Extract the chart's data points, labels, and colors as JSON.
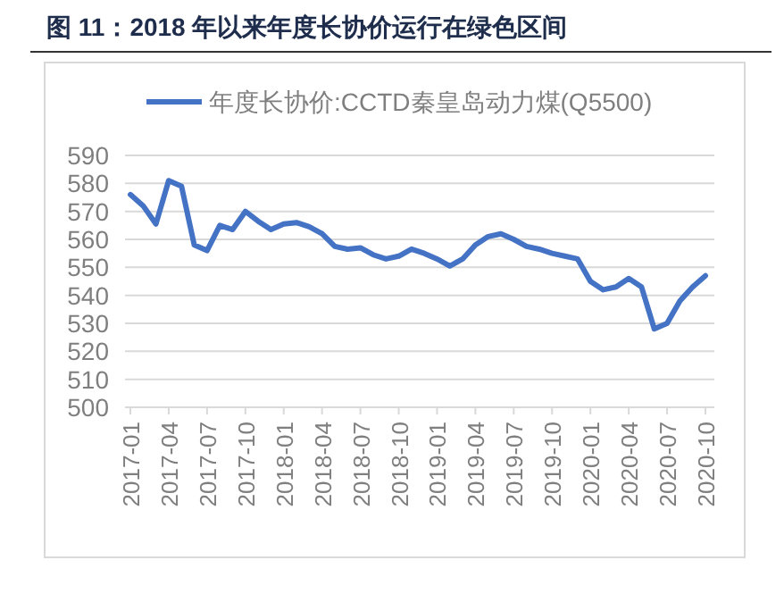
{
  "chart_data": {
    "type": "line",
    "title": "图 11：2018 年以来年度长协价运行在绿色区间",
    "categories": [
      "2017-01",
      null,
      null,
      "2017-04",
      null,
      null,
      "2017-07",
      null,
      null,
      "2017-10",
      null,
      null,
      "2018-01",
      null,
      null,
      "2018-04",
      null,
      null,
      "2018-07",
      null,
      null,
      "2018-10",
      null,
      null,
      "2019-01",
      null,
      null,
      "2019-04",
      null,
      null,
      "2019-07",
      null,
      null,
      "2019-10",
      null,
      null,
      "2020-01",
      null,
      null,
      "2020-04",
      null,
      null,
      "2020-07",
      null,
      null,
      "2020-10"
    ],
    "series": [
      {
        "name": "年度长协价:CCTD秦皇岛动力煤(Q5500)",
        "color": "#4472c4",
        "values": [
          576,
          572,
          565.5,
          581,
          579,
          558,
          556,
          565,
          563.5,
          570,
          566.5,
          563.5,
          565.5,
          566,
          564.5,
          562,
          557.5,
          556.5,
          557,
          554.5,
          553,
          554,
          556.5,
          555,
          553,
          550.5,
          553,
          558,
          561,
          562,
          560,
          557.5,
          556.5,
          555,
          554,
          553,
          545,
          542,
          543,
          546,
          543,
          528,
          530,
          538,
          543,
          547
        ]
      }
    ],
    "ylim": [
      500,
      590
    ],
    "yticks": [
      500,
      510,
      520,
      530,
      540,
      550,
      560,
      570,
      580,
      590
    ],
    "grid": "y",
    "legend": "top",
    "marker": "none",
    "line_style": "solid"
  }
}
